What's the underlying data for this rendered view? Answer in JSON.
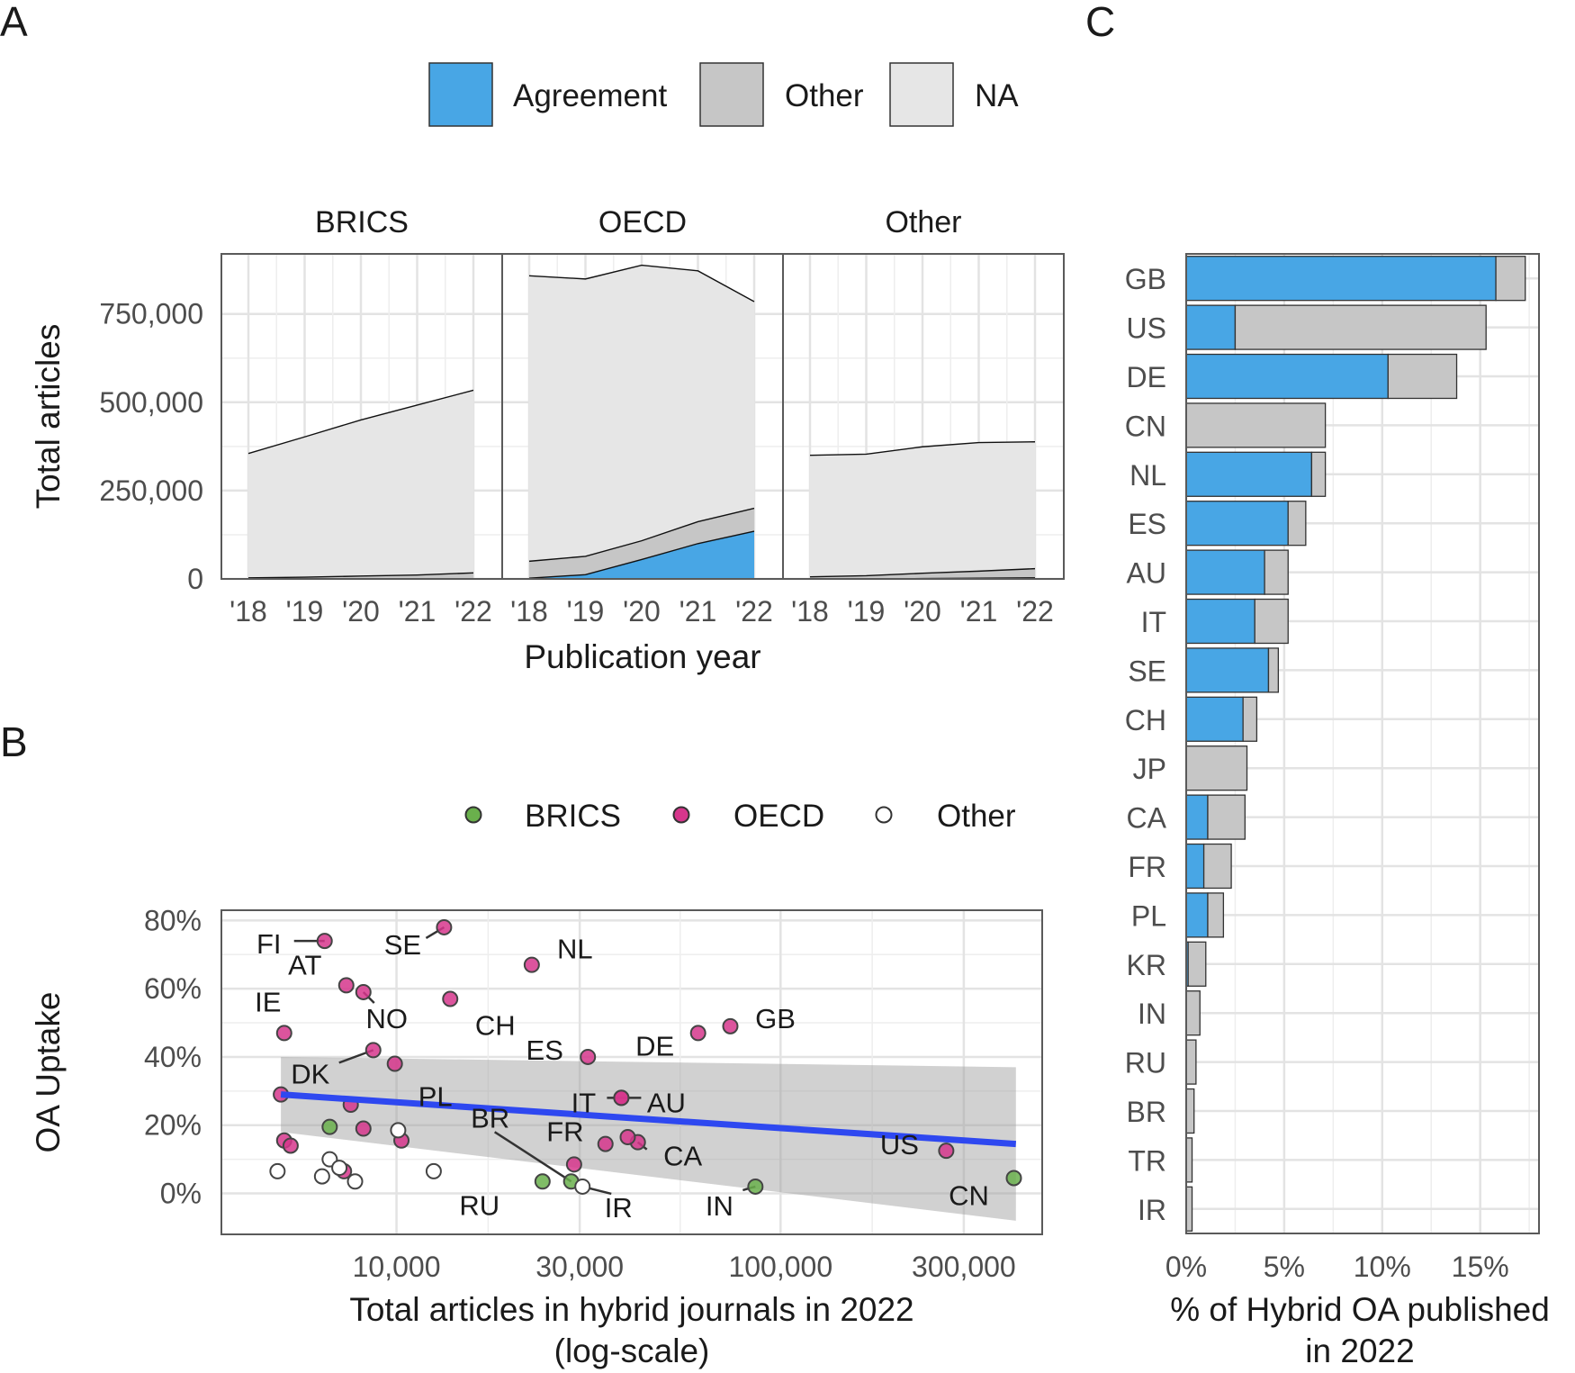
{
  "panel_letters": {
    "a": "A",
    "b": "B",
    "c": "C"
  },
  "legend_a": {
    "items": [
      {
        "label": "Agreement",
        "color": "#48a6e5"
      },
      {
        "label": "Other",
        "color": "#c6c6c6"
      },
      {
        "label": "NA",
        "color": "#e6e6e6"
      }
    ]
  },
  "legend_b": {
    "items": [
      {
        "label": "BRICS",
        "color": "#6ab04c"
      },
      {
        "label": "OECD",
        "color": "#d6368c"
      },
      {
        "label": "Other",
        "color": "#ffffff"
      }
    ]
  },
  "chart_data": [
    {
      "id": "A",
      "type": "area",
      "stacked": true,
      "xlabel": "Publication year",
      "ylabel": "Total articles",
      "x": [
        2018,
        2019,
        2020,
        2021,
        2022
      ],
      "x_tick_labels": [
        "'18",
        "'19",
        "'20",
        "'21",
        "'22"
      ],
      "ylim": [
        0,
        920000
      ],
      "y_ticks": [
        0,
        250000,
        500000,
        750000
      ],
      "y_tick_labels": [
        "0",
        "250,000",
        "500,000",
        "750,000"
      ],
      "facets": [
        {
          "name": "BRICS",
          "series": [
            {
              "name": "Agreement",
              "values": [
                0,
                0,
                0,
                0,
                0
              ]
            },
            {
              "name": "Other",
              "values": [
                3000,
                5000,
                8000,
                11000,
                17000
              ]
            },
            {
              "name": "NA",
              "values": [
                352000,
                397000,
                442000,
                481000,
                517000
              ]
            }
          ]
        },
        {
          "name": "OECD",
          "series": [
            {
              "name": "Agreement",
              "values": [
                2000,
                12000,
                55000,
                100000,
                135000
              ]
            },
            {
              "name": "Other",
              "values": [
                48000,
                52000,
                53000,
                62000,
                65000
              ]
            },
            {
              "name": "NA",
              "values": [
                808000,
                785000,
                780000,
                710000,
                585000
              ]
            }
          ]
        },
        {
          "name": "Other",
          "series": [
            {
              "name": "Agreement",
              "values": [
                0,
                0,
                1000,
                2000,
                3000
              ]
            },
            {
              "name": "Other",
              "values": [
                6000,
                9000,
                15000,
                20000,
                26000
              ]
            },
            {
              "name": "NA",
              "values": [
                344000,
                344000,
                358000,
                364000,
                359000
              ]
            }
          ]
        }
      ]
    },
    {
      "id": "B",
      "type": "scatter",
      "xlabel_line1": "Total articles in hybrid journals in 2022",
      "xlabel_line2": "(log-scale)",
      "ylabel": "OA Uptake",
      "x_scale": "log",
      "xlim": [
        3500,
        480000
      ],
      "x_ticks": [
        10000,
        30000,
        100000,
        300000
      ],
      "x_tick_labels": [
        "10,000",
        "30,000",
        "100,000",
        "300,000"
      ],
      "ylim": [
        -0.12,
        0.83
      ],
      "y_ticks": [
        0,
        0.2,
        0.4,
        0.6,
        0.8
      ],
      "y_tick_labels": [
        "0%",
        "20%",
        "40%",
        "60%",
        "80%"
      ],
      "trend": {
        "x": [
          5000,
          410000
        ],
        "y": [
          0.29,
          0.145
        ],
        "upper": [
          0.4,
          0.37
        ],
        "lower": [
          0.18,
          -0.08
        ]
      },
      "points": [
        {
          "label": "FI",
          "x": 6500,
          "y": 0.74,
          "group": "OECD"
        },
        {
          "label": "SE",
          "x": 13300,
          "y": 0.78,
          "group": "OECD"
        },
        {
          "label": "NL",
          "x": 22500,
          "y": 0.67,
          "group": "OECD"
        },
        {
          "label": "AT",
          "x": 7400,
          "y": 0.61,
          "group": "OECD"
        },
        {
          "label": "NO",
          "x": 8200,
          "y": 0.59,
          "group": "OECD"
        },
        {
          "label": "CH",
          "x": 13800,
          "y": 0.57,
          "group": "OECD"
        },
        {
          "label": "IE",
          "x": 5100,
          "y": 0.47,
          "group": "OECD"
        },
        {
          "label": "GB",
          "x": 74000,
          "y": 0.49,
          "group": "OECD"
        },
        {
          "label": "DE",
          "x": 61000,
          "y": 0.47,
          "group": "OECD"
        },
        {
          "label": "ES",
          "x": 31500,
          "y": 0.4,
          "group": "OECD"
        },
        {
          "label": "DK",
          "x": 8700,
          "y": 0.42,
          "group": "OECD"
        },
        {
          "label": "PL",
          "x": 9900,
          "y": 0.38,
          "group": "OECD"
        },
        {
          "label": "AU",
          "x": 38500,
          "y": 0.28,
          "group": "OECD"
        },
        {
          "label": "IT",
          "x": 38500,
          "y": 0.28,
          "group": "OECD"
        },
        {
          "label": "CA",
          "x": 42500,
          "y": 0.15,
          "group": "OECD"
        },
        {
          "label": "FR",
          "x": 29000,
          "y": 0.085,
          "group": "OECD"
        },
        {
          "label": "US",
          "x": 270000,
          "y": 0.125,
          "group": "OECD"
        },
        {
          "label": "RU",
          "x": 24000,
          "y": 0.035,
          "group": "BRICS"
        },
        {
          "label": "BR",
          "x": 28500,
          "y": 0.035,
          "group": "BRICS"
        },
        {
          "label": "IN",
          "x": 86000,
          "y": 0.02,
          "group": "BRICS"
        },
        {
          "label": "CN",
          "x": 405000,
          "y": 0.045,
          "group": "BRICS"
        },
        {
          "label": "IR",
          "x": 30500,
          "y": 0.02,
          "group": "Other"
        },
        {
          "label": "",
          "x": 5000,
          "y": 0.29,
          "group": "OECD"
        },
        {
          "label": "",
          "x": 5100,
          "y": 0.155,
          "group": "OECD"
        },
        {
          "label": "",
          "x": 5300,
          "y": 0.14,
          "group": "OECD"
        },
        {
          "label": "",
          "x": 7600,
          "y": 0.26,
          "group": "OECD"
        },
        {
          "label": "",
          "x": 8200,
          "y": 0.19,
          "group": "OECD"
        },
        {
          "label": "",
          "x": 10300,
          "y": 0.155,
          "group": "OECD"
        },
        {
          "label": "",
          "x": 35000,
          "y": 0.145,
          "group": "OECD"
        },
        {
          "label": "",
          "x": 40000,
          "y": 0.165,
          "group": "OECD"
        },
        {
          "label": "",
          "x": 7300,
          "y": 0.065,
          "group": "OECD"
        },
        {
          "label": "",
          "x": 6700,
          "y": 0.195,
          "group": "BRICS"
        },
        {
          "label": "",
          "x": 4900,
          "y": 0.065,
          "group": "Other"
        },
        {
          "label": "",
          "x": 6400,
          "y": 0.05,
          "group": "Other"
        },
        {
          "label": "",
          "x": 6700,
          "y": 0.1,
          "group": "Other"
        },
        {
          "label": "",
          "x": 7100,
          "y": 0.075,
          "group": "Other"
        },
        {
          "label": "",
          "x": 7800,
          "y": 0.035,
          "group": "Other"
        },
        {
          "label": "",
          "x": 10100,
          "y": 0.185,
          "group": "Other"
        },
        {
          "label": "",
          "x": 12500,
          "y": 0.065,
          "group": "Other"
        }
      ]
    },
    {
      "id": "C",
      "type": "bar",
      "orientation": "horizontal",
      "stacked": true,
      "xlabel_line1": "% of Hybrid OA published",
      "xlabel_line2": "in 2022",
      "xlim": [
        0,
        18
      ],
      "x_ticks": [
        0,
        5,
        10,
        15
      ],
      "x_tick_labels": [
        "0%",
        "5%",
        "10%",
        "15%"
      ],
      "categories": [
        "GB",
        "US",
        "DE",
        "CN",
        "NL",
        "ES",
        "AU",
        "IT",
        "SE",
        "CH",
        "JP",
        "CA",
        "FR",
        "PL",
        "KR",
        "IN",
        "RU",
        "BR",
        "TR",
        "IR"
      ],
      "series": [
        {
          "name": "Agreement",
          "values": [
            15.8,
            2.5,
            10.3,
            0,
            6.4,
            5.2,
            4.0,
            3.5,
            4.2,
            2.9,
            0,
            1.1,
            0.9,
            1.1,
            0.1,
            0,
            0,
            0,
            0,
            0
          ]
        },
        {
          "name": "Other",
          "values": [
            1.5,
            12.8,
            3.5,
            7.1,
            0.7,
            0.9,
            1.2,
            1.7,
            0.5,
            0.7,
            3.1,
            1.9,
            1.4,
            0.8,
            0.9,
            0.7,
            0.5,
            0.4,
            0.3,
            0.3
          ]
        }
      ]
    }
  ]
}
